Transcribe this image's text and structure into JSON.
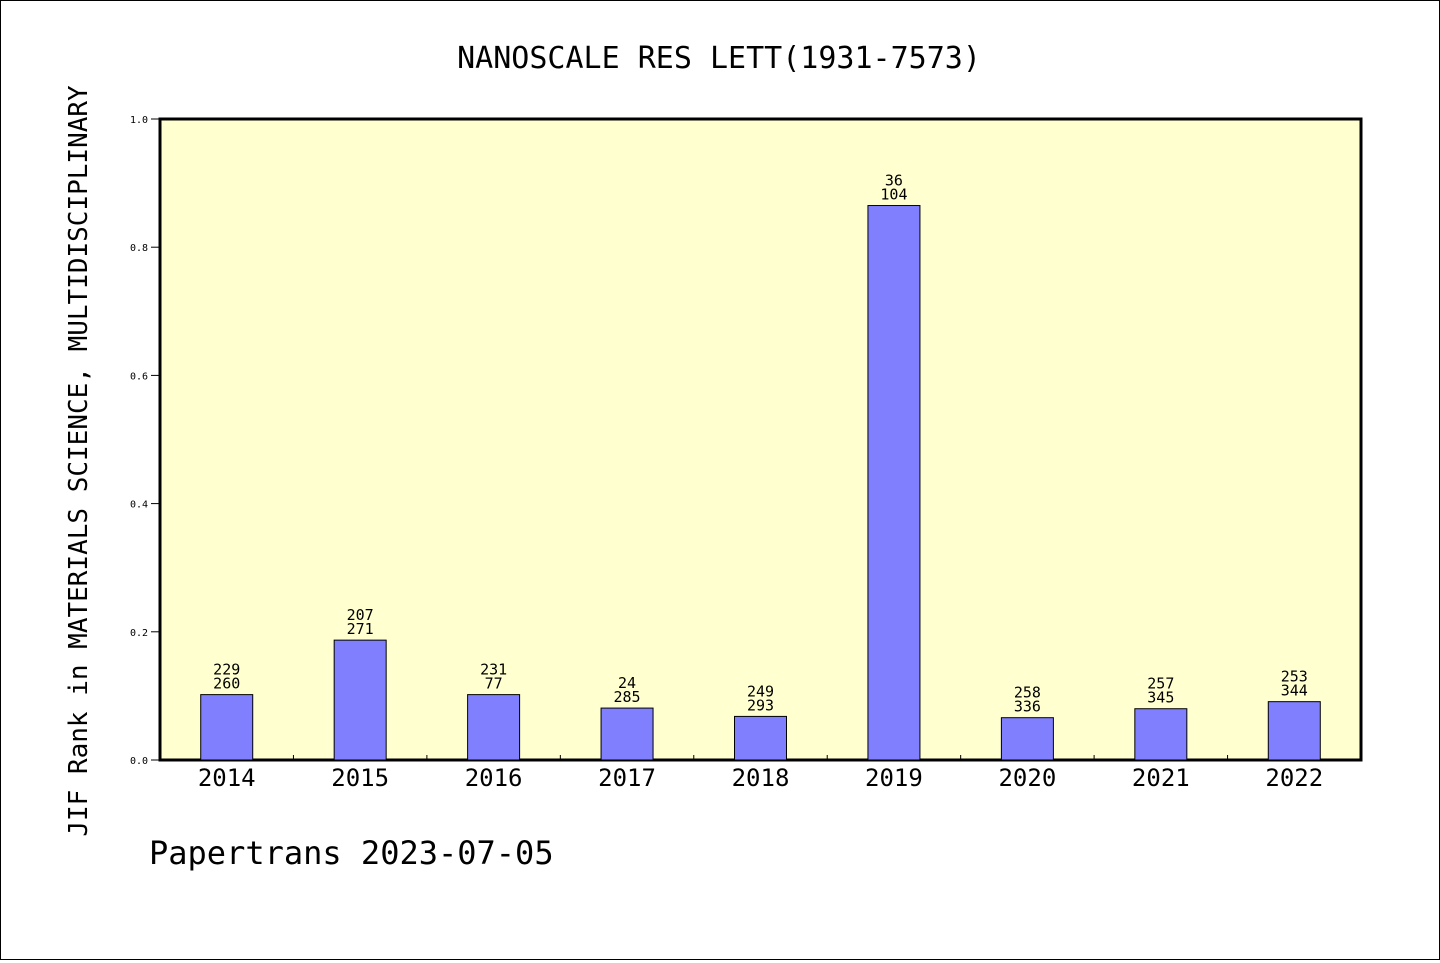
{
  "chart_data": {
    "type": "bar",
    "title": "NANOSCALE RES LETT(1931-7573)",
    "xlabel": "",
    "ylabel": "JIF Rank in MATERIALS SCIENCE, MULTIDISCIPLINARY",
    "ylim": [
      0,
      1.0
    ],
    "yticks": [
      "0.0",
      "0.2",
      "0.4",
      "0.6",
      "0.8",
      "1.0"
    ],
    "grid": false,
    "categories": [
      "2014",
      "2015",
      "2016",
      "2017",
      "2018",
      "2019",
      "2020",
      "2021",
      "2022"
    ],
    "values": [
      0.102,
      0.187,
      0.102,
      0.081,
      0.068,
      0.865,
      0.066,
      0.08,
      0.091
    ],
    "labels_top": [
      "229",
      "207",
      "231",
      "24",
      "249",
      "36",
      "258",
      "257",
      "253"
    ],
    "labels_bottom": [
      "260",
      "271",
      "77",
      "285",
      "293",
      "104",
      "336",
      "345",
      "344"
    ],
    "colors": {
      "plot_background": "#ffffd0",
      "bar_fill": "#8080ff",
      "bar_stroke": "#000000",
      "axis": "#000000"
    }
  },
  "footer": {
    "credit": "Papertrans 2023-07-05"
  }
}
